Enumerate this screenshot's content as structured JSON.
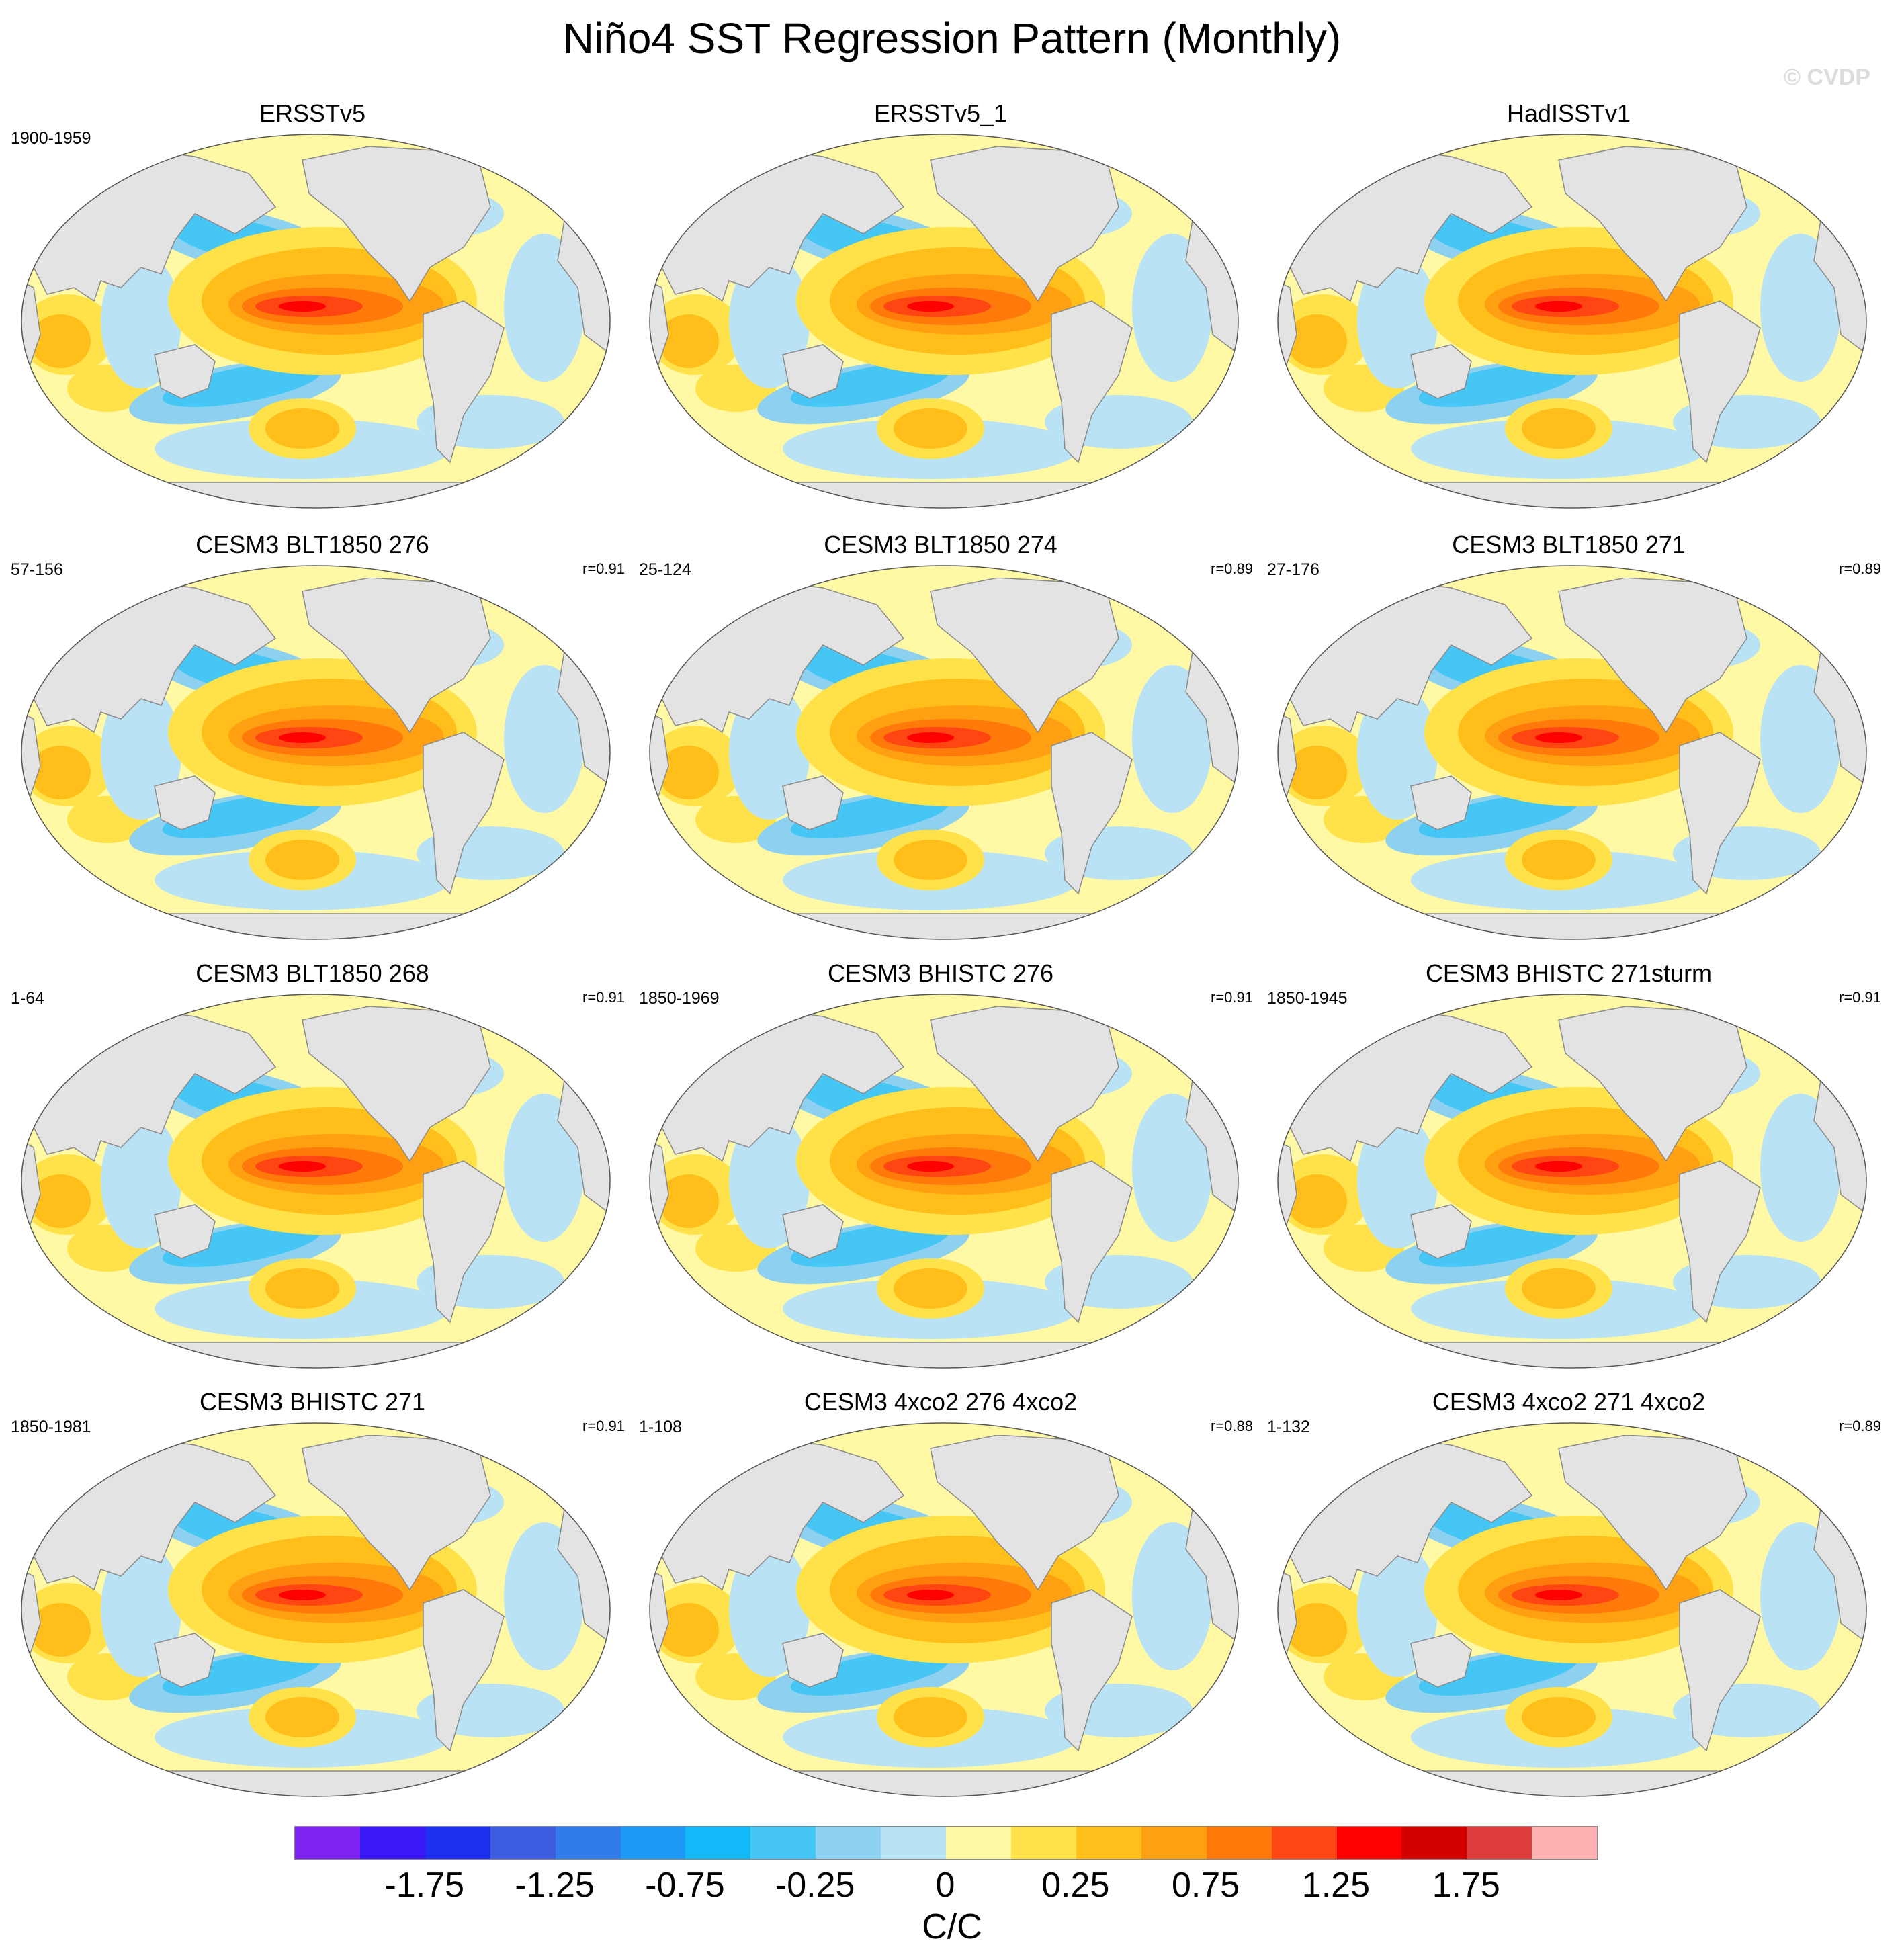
{
  "title": "Niño4 SST Regression Pattern (Monthly)",
  "watermark": "© CVDP",
  "panels": [
    {
      "title": "ERSSTv5",
      "years": "1900-1959",
      "r": ""
    },
    {
      "title": "ERSSTv5_1",
      "years": "",
      "r": ""
    },
    {
      "title": "HadISSTv1",
      "years": "",
      "r": ""
    },
    {
      "title": "CESM3 BLT1850 276",
      "years": "57-156",
      "r": "r=0.91"
    },
    {
      "title": "CESM3 BLT1850 274",
      "years": "25-124",
      "r": "r=0.89"
    },
    {
      "title": "CESM3 BLT1850 271",
      "years": "27-176",
      "r": "r=0.89"
    },
    {
      "title": "CESM3 BLT1850 268",
      "years": "1-64",
      "r": "r=0.91"
    },
    {
      "title": "CESM3 BHISTC 276",
      "years": "1850-1969",
      "r": "r=0.91"
    },
    {
      "title": "CESM3 BHISTC 271sturm",
      "years": "1850-1945",
      "r": "r=0.91"
    },
    {
      "title": "CESM3 BHISTC 271",
      "years": "1850-1981",
      "r": "r=0.91"
    },
    {
      "title": "CESM3 4xco2 276 4xco2",
      "years": "1-108",
      "r": "r=0.88"
    },
    {
      "title": "CESM3 4xco2 271 4xco2",
      "years": "1-132",
      "r": "r=0.89"
    }
  ],
  "colorbar": {
    "units": "C/C",
    "labels": [
      "-1.75",
      "-1.25",
      "-0.75",
      "-0.25",
      "0",
      "0.25",
      "0.75",
      "1.25",
      "1.75"
    ],
    "colors": [
      "#7d22f0",
      "#3a18f5",
      "#1e2ff0",
      "#3d5ce0",
      "#2f7cea",
      "#1e98f7",
      "#13b8f8",
      "#46c6f5",
      "#8ed0ef",
      "#b9e2f5",
      "#fff8a4",
      "#ffe24a",
      "#ffbe19",
      "#ff9f12",
      "#ff7a0a",
      "#ff4512",
      "#ff0000",
      "#d40000",
      "#dc3c3c",
      "#ffb0b0"
    ]
  },
  "map_colors": {
    "land": "#e3e3e3",
    "coast": "#8a8a8a",
    "ocean_neutral": "#fff8a4",
    "weak_cool": "#b9e2f5",
    "mid_cool": "#8ed0ef",
    "strong_cool": "#46c6f5",
    "cool_core": "#13b8f8",
    "weak_warm": "#ffe24a",
    "mid_warm": "#ffbe19",
    "strong_warm": "#ff9f12",
    "hot": "#ff7a0a",
    "hot_core": "#ff4512",
    "max": "#ff0000"
  }
}
